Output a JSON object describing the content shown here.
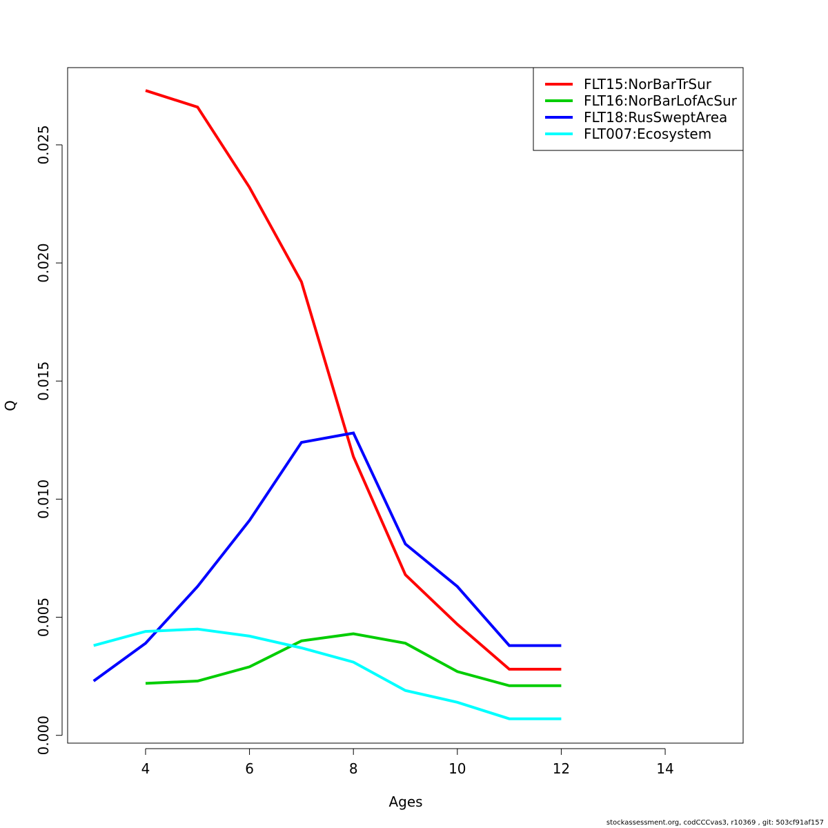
{
  "chart_data": {
    "type": "line",
    "xlabel": "Ages",
    "ylabel": "Q",
    "xlim": [
      2.5,
      15.5
    ],
    "ylim": [
      -0.00033,
      0.02827
    ],
    "x_ticks": [
      4,
      6,
      8,
      10,
      12,
      14
    ],
    "x_tick_labels": [
      "4",
      "6",
      "8",
      "10",
      "12",
      "14"
    ],
    "y_ticks": [
      0,
      0.005,
      0.01,
      0.015,
      0.02,
      0.025
    ],
    "y_tick_labels": [
      "0.000",
      "0.005",
      "0.010",
      "0.015",
      "0.020",
      "0.025"
    ],
    "grid": false,
    "legend_position": "top-right",
    "series": [
      {
        "name": "FLT15:NorBarTrSur",
        "color": "#ff0000",
        "x": [
          4,
          5,
          6,
          7,
          8,
          9,
          10,
          11,
          12
        ],
        "y": [
          0.0273,
          0.0266,
          0.0232,
          0.0192,
          0.0118,
          0.0068,
          0.0047,
          0.0028,
          0.0028
        ]
      },
      {
        "name": "FLT16:NorBarLofAcSur",
        "color": "#00cd00",
        "x": [
          4,
          5,
          6,
          7,
          8,
          9,
          10,
          11,
          12
        ],
        "y": [
          0.0022,
          0.0023,
          0.0029,
          0.004,
          0.0043,
          0.0039,
          0.0027,
          0.0021,
          0.0021
        ]
      },
      {
        "name": "FLT18:RusSweptArea",
        "color": "#0000ff",
        "x": [
          3,
          4,
          5,
          6,
          7,
          8,
          9,
          10,
          11,
          12
        ],
        "y": [
          0.0023,
          0.0039,
          0.0063,
          0.0091,
          0.0124,
          0.0128,
          0.0081,
          0.0063,
          0.0038,
          0.0038
        ]
      },
      {
        "name": "FLT007:Ecosystem",
        "color": "#00ffff",
        "x": [
          3,
          4,
          5,
          6,
          7,
          8,
          9,
          10,
          11,
          12
        ],
        "y": [
          0.0038,
          0.0044,
          0.0045,
          0.0042,
          0.0037,
          0.0031,
          0.0019,
          0.0014,
          0.0007,
          0.0007
        ]
      }
    ]
  },
  "footer": "stockassessment.org, codCCCvas3, r10369 , git: 503cf91af157"
}
